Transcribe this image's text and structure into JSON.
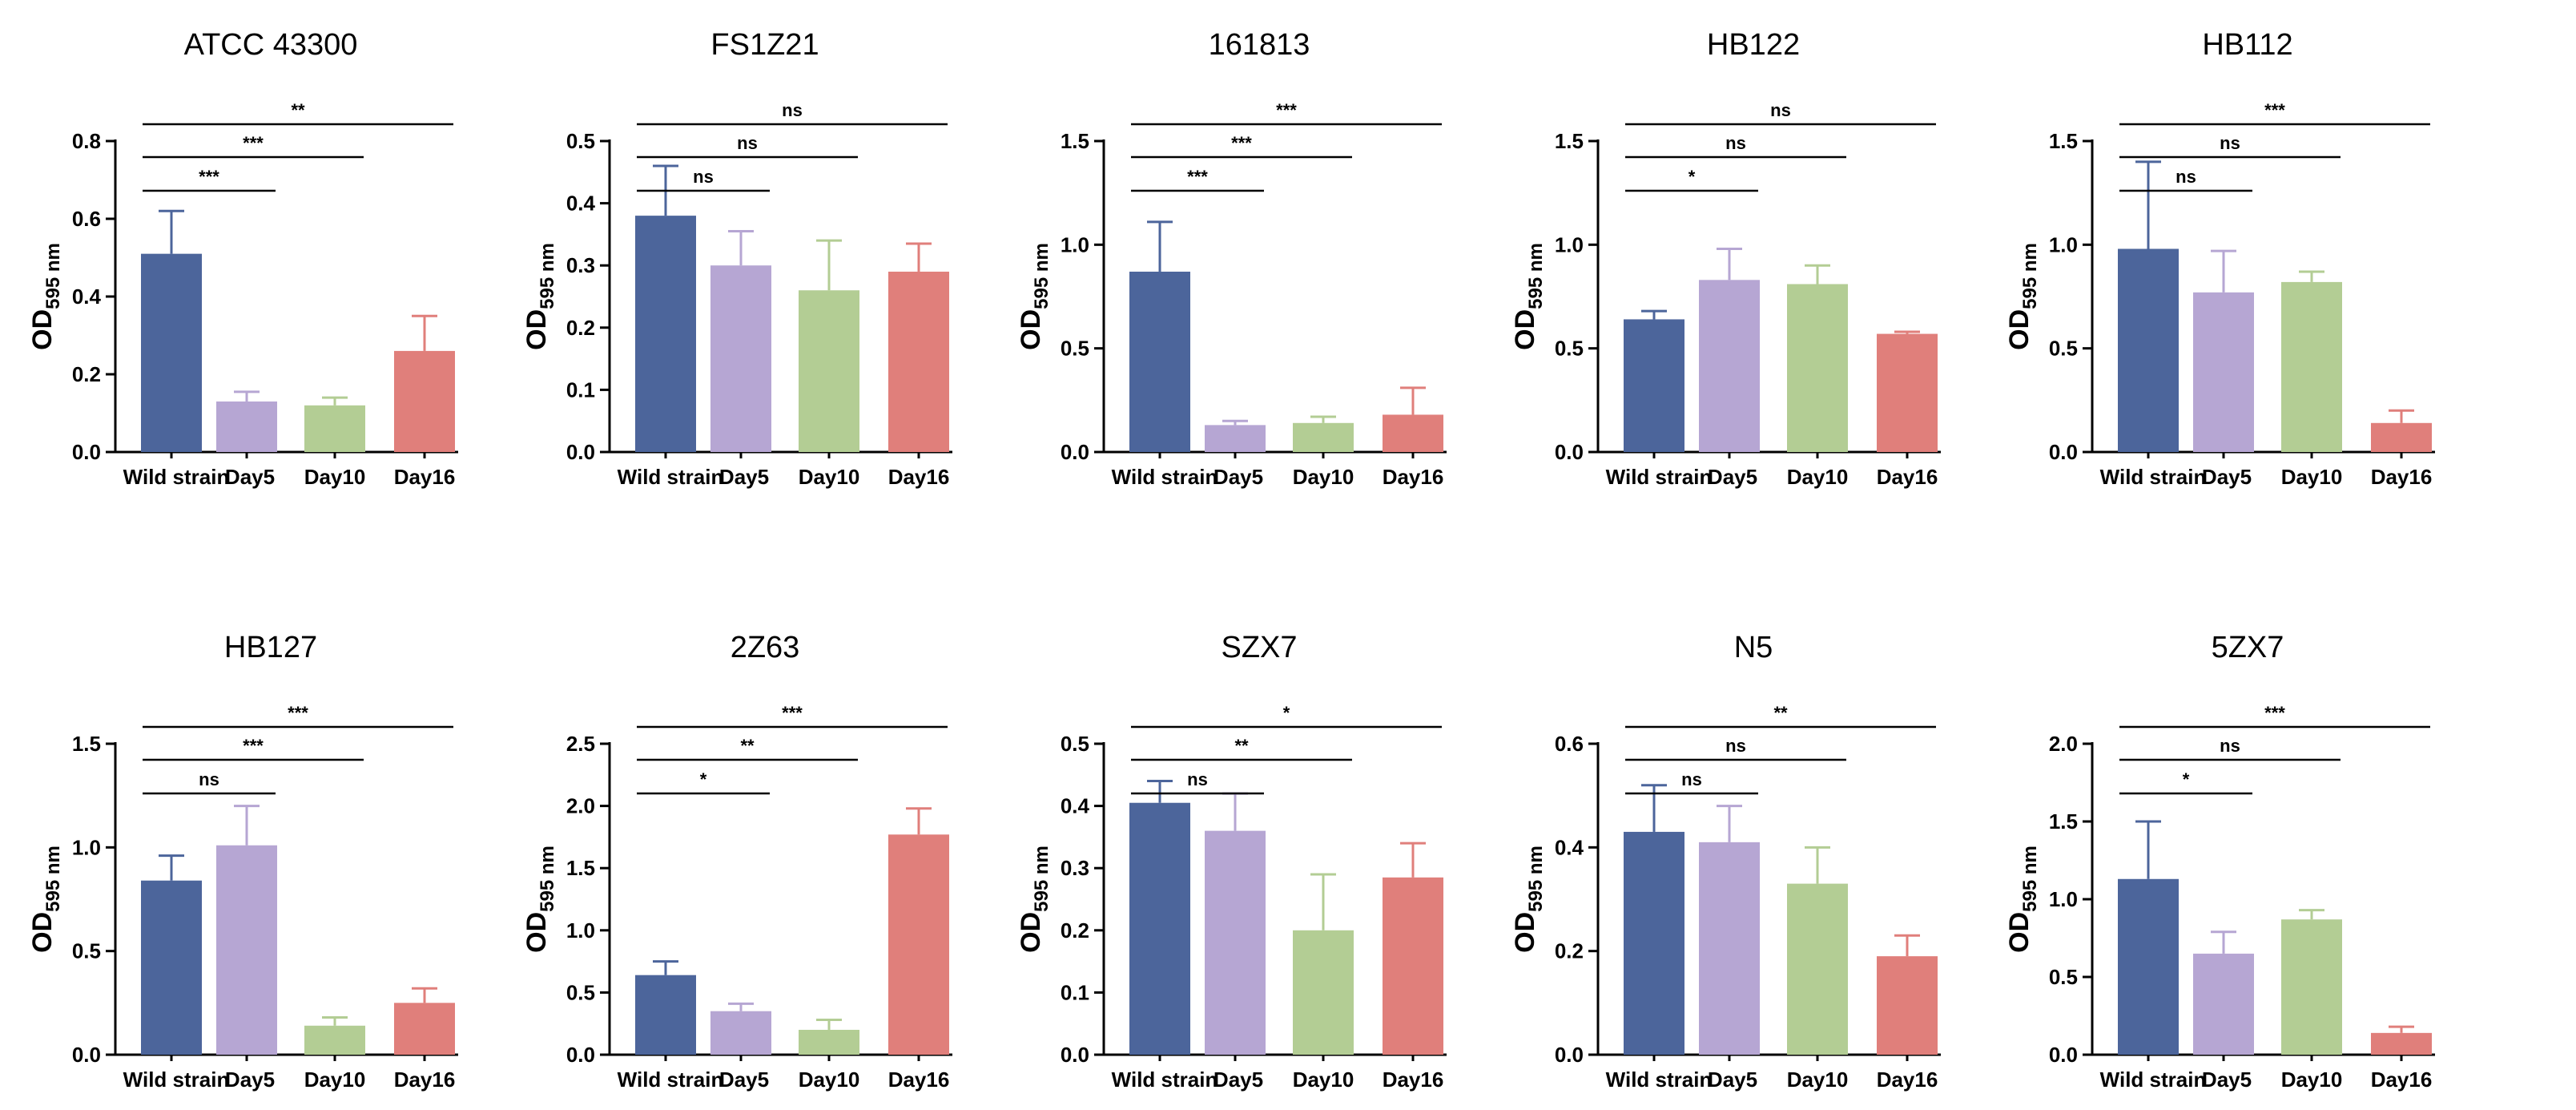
{
  "figure": {
    "ylabel_main": "OD",
    "ylabel_sub": "595 nm",
    "colors": [
      "#4c659b",
      "#b6a6d3",
      "#b3cd94",
      "#e07f7b"
    ],
    "error_colors": [
      "#4c659b",
      "#b6a6d3",
      "#b3cd94",
      "#e07f7b"
    ]
  },
  "chart_data": [
    {
      "type": "bar",
      "title": "ATCC 43300",
      "categories": [
        "Wild strain",
        "Day5",
        "Day10",
        "Day16"
      ],
      "values": [
        0.51,
        0.13,
        0.12,
        0.26
      ],
      "errors": [
        0.11,
        0.025,
        0.02,
        0.09
      ],
      "ylim": [
        0,
        0.8
      ],
      "yticks": [
        0.0,
        0.2,
        0.4,
        0.6,
        0.8
      ],
      "ytick_labels": [
        "0.0",
        "0.2",
        "0.4",
        "0.6",
        "0.8"
      ],
      "xlabel": "",
      "ylabel": "OD595 nm",
      "grid": false,
      "significance": [
        {
          "from": 0,
          "to": 1,
          "label": "***"
        },
        {
          "from": 0,
          "to": 2,
          "label": "***"
        },
        {
          "from": 0,
          "to": 3,
          "label": "**"
        }
      ]
    },
    {
      "type": "bar",
      "title": "FS1Z21",
      "categories": [
        "Wild strain",
        "Day5",
        "Day10",
        "Day16"
      ],
      "values": [
        0.38,
        0.3,
        0.26,
        0.29
      ],
      "errors": [
        0.08,
        0.055,
        0.08,
        0.045
      ],
      "ylim": [
        0,
        0.5
      ],
      "yticks": [
        0.0,
        0.1,
        0.2,
        0.3,
        0.4,
        0.5
      ],
      "ytick_labels": [
        "0.0",
        "0.1",
        "0.2",
        "0.3",
        "0.4",
        "0.5"
      ],
      "xlabel": "",
      "ylabel": "OD595 nm",
      "grid": false,
      "significance": [
        {
          "from": 0,
          "to": 1,
          "label": "ns"
        },
        {
          "from": 0,
          "to": 2,
          "label": "ns"
        },
        {
          "from": 0,
          "to": 3,
          "label": "ns"
        }
      ]
    },
    {
      "type": "bar",
      "title": "161813",
      "categories": [
        "Wild strain",
        "Day5",
        "Day10",
        "Day16"
      ],
      "values": [
        0.87,
        0.13,
        0.14,
        0.18
      ],
      "errors": [
        0.24,
        0.02,
        0.03,
        0.13
      ],
      "ylim": [
        0,
        1.5
      ],
      "yticks": [
        0.0,
        0.5,
        1.0,
        1.5
      ],
      "ytick_labels": [
        "0.0",
        "0.5",
        "1.0",
        "1.5"
      ],
      "xlabel": "",
      "ylabel": "OD595 nm",
      "grid": false,
      "significance": [
        {
          "from": 0,
          "to": 1,
          "label": "***"
        },
        {
          "from": 0,
          "to": 2,
          "label": "***"
        },
        {
          "from": 0,
          "to": 3,
          "label": "***"
        }
      ]
    },
    {
      "type": "bar",
      "title": "HB122",
      "categories": [
        "Wild strain",
        "Day5",
        "Day10",
        "Day16"
      ],
      "values": [
        0.64,
        0.83,
        0.81,
        0.57
      ],
      "errors": [
        0.04,
        0.15,
        0.09,
        0.01
      ],
      "ylim": [
        0,
        1.5
      ],
      "yticks": [
        0.0,
        0.5,
        1.0,
        1.5
      ],
      "ytick_labels": [
        "0.0",
        "0.5",
        "1.0",
        "1.5"
      ],
      "xlabel": "",
      "ylabel": "OD595 nm",
      "grid": false,
      "significance": [
        {
          "from": 0,
          "to": 1,
          "label": "*"
        },
        {
          "from": 0,
          "to": 2,
          "label": "ns"
        },
        {
          "from": 0,
          "to": 3,
          "label": "ns"
        }
      ]
    },
    {
      "type": "bar",
      "title": "HB112",
      "categories": [
        "Wild strain",
        "Day5",
        "Day10",
        "Day16"
      ],
      "values": [
        0.98,
        0.77,
        0.82,
        0.14
      ],
      "errors": [
        0.42,
        0.2,
        0.05,
        0.06
      ],
      "ylim": [
        0,
        1.5
      ],
      "yticks": [
        0.0,
        0.5,
        1.0,
        1.5
      ],
      "ytick_labels": [
        "0.0",
        "0.5",
        "1.0",
        "1.5"
      ],
      "xlabel": "",
      "ylabel": "OD595 nm",
      "grid": false,
      "significance": [
        {
          "from": 0,
          "to": 1,
          "label": "ns"
        },
        {
          "from": 0,
          "to": 2,
          "label": "ns"
        },
        {
          "from": 0,
          "to": 3,
          "label": "***"
        }
      ]
    },
    {
      "type": "bar",
      "title": "HB127",
      "categories": [
        "Wild strain",
        "Day5",
        "Day10",
        "Day16"
      ],
      "values": [
        0.84,
        1.01,
        0.14,
        0.25
      ],
      "errors": [
        0.12,
        0.19,
        0.04,
        0.07
      ],
      "ylim": [
        0,
        1.5
      ],
      "yticks": [
        0.0,
        0.5,
        1.0,
        1.5
      ],
      "ytick_labels": [
        "0.0",
        "0.5",
        "1.0",
        "1.5"
      ],
      "xlabel": "",
      "ylabel": "OD595 nm",
      "grid": false,
      "significance": [
        {
          "from": 0,
          "to": 1,
          "label": "ns"
        },
        {
          "from": 0,
          "to": 2,
          "label": "***"
        },
        {
          "from": 0,
          "to": 3,
          "label": "***"
        }
      ]
    },
    {
      "type": "bar",
      "title": "2Z63",
      "categories": [
        "Wild strain",
        "Day5",
        "Day10",
        "Day16"
      ],
      "values": [
        0.64,
        0.35,
        0.2,
        1.77
      ],
      "errors": [
        0.11,
        0.06,
        0.08,
        0.21
      ],
      "ylim": [
        0,
        2.5
      ],
      "yticks": [
        0.0,
        0.5,
        1.0,
        1.5,
        2.0,
        2.5
      ],
      "ytick_labels": [
        "0.0",
        "0.5",
        "1.0",
        "1.5",
        "2.0",
        "2.5"
      ],
      "xlabel": "",
      "ylabel": "OD595 nm",
      "grid": false,
      "significance": [
        {
          "from": 0,
          "to": 1,
          "label": "*"
        },
        {
          "from": 0,
          "to": 2,
          "label": "**"
        },
        {
          "from": 0,
          "to": 3,
          "label": "***"
        }
      ]
    },
    {
      "type": "bar",
      "title": "SZX7",
      "categories": [
        "Wild strain",
        "Day5",
        "Day10",
        "Day16"
      ],
      "values": [
        0.405,
        0.36,
        0.2,
        0.285
      ],
      "errors": [
        0.035,
        0.06,
        0.09,
        0.055
      ],
      "ylim": [
        0,
        0.5
      ],
      "yticks": [
        0.0,
        0.1,
        0.2,
        0.3,
        0.4,
        0.5
      ],
      "ytick_labels": [
        "0.0",
        "0.1",
        "0.2",
        "0.3",
        "0.4",
        "0.5"
      ],
      "xlabel": "",
      "ylabel": "OD595 nm",
      "grid": false,
      "significance": [
        {
          "from": 0,
          "to": 1,
          "label": "ns"
        },
        {
          "from": 0,
          "to": 2,
          "label": "**"
        },
        {
          "from": 0,
          "to": 3,
          "label": "*"
        }
      ]
    },
    {
      "type": "bar",
      "title": "N5",
      "categories": [
        "Wild strain",
        "Day5",
        "Day10",
        "Day16"
      ],
      "values": [
        0.43,
        0.41,
        0.33,
        0.19
      ],
      "errors": [
        0.09,
        0.07,
        0.07,
        0.04
      ],
      "ylim": [
        0,
        0.6
      ],
      "yticks": [
        0.0,
        0.2,
        0.4,
        0.6
      ],
      "ytick_labels": [
        "0.0",
        "0.2",
        "0.4",
        "0.6"
      ],
      "xlabel": "",
      "ylabel": "OD595 nm",
      "grid": false,
      "significance": [
        {
          "from": 0,
          "to": 1,
          "label": "ns"
        },
        {
          "from": 0,
          "to": 2,
          "label": "ns"
        },
        {
          "from": 0,
          "to": 3,
          "label": "**"
        }
      ]
    },
    {
      "type": "bar",
      "title": "5ZX7",
      "categories": [
        "Wild strain",
        "Day5",
        "Day10",
        "Day16"
      ],
      "values": [
        1.13,
        0.65,
        0.87,
        0.14
      ],
      "errors": [
        0.37,
        0.14,
        0.06,
        0.04
      ],
      "ylim": [
        0,
        2.0
      ],
      "yticks": [
        0.0,
        0.5,
        1.0,
        1.5,
        2.0
      ],
      "ytick_labels": [
        "0.0",
        "0.5",
        "1.0",
        "1.5",
        "2.0"
      ],
      "xlabel": "",
      "ylabel": "OD595 nm",
      "grid": false,
      "significance": [
        {
          "from": 0,
          "to": 1,
          "label": "*"
        },
        {
          "from": 0,
          "to": 2,
          "label": "ns"
        },
        {
          "from": 0,
          "to": 3,
          "label": "***"
        }
      ]
    }
  ]
}
